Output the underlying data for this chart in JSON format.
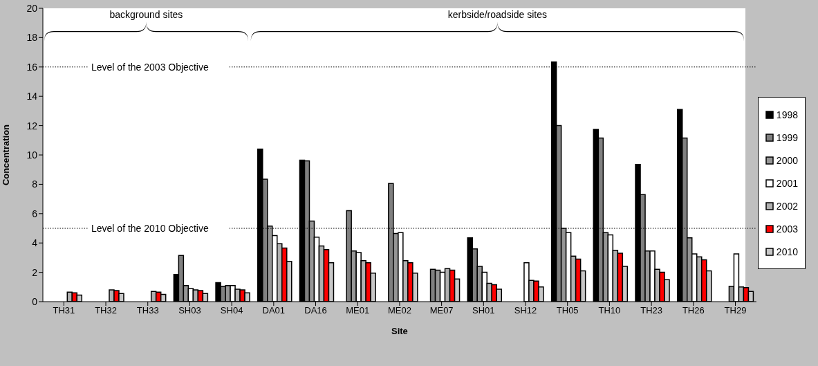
{
  "chart_data": {
    "type": "bar",
    "xlabel": "Site",
    "ylabel": "Concentration",
    "categories": [
      "TH31",
      "TH32",
      "TH33",
      "SH03",
      "SH04",
      "DA01",
      "DA16",
      "ME01",
      "ME02",
      "ME07",
      "SH01",
      "SH12",
      "TH05",
      "TH10",
      "TH23",
      "TH26",
      "TH29"
    ],
    "series": [
      {
        "name": "1998",
        "color": "#000000",
        "values": [
          null,
          null,
          null,
          1.85,
          1.3,
          10.4,
          9.65,
          null,
          null,
          null,
          4.35,
          null,
          16.35,
          11.75,
          9.35,
          13.1,
          null
        ]
      },
      {
        "name": "1999",
        "color": "#808080",
        "values": [
          null,
          null,
          null,
          3.15,
          1.05,
          8.35,
          9.6,
          6.2,
          8.05,
          2.2,
          3.6,
          null,
          12.0,
          11.15,
          7.3,
          11.15,
          null
        ]
      },
      {
        "name": "2000",
        "color": "#969696",
        "values": [
          null,
          null,
          null,
          1.1,
          1.1,
          5.15,
          5.5,
          3.45,
          4.65,
          2.15,
          2.4,
          null,
          5.0,
          4.7,
          3.45,
          4.35,
          1.05
        ]
      },
      {
        "name": "2001",
        "color": "#ffffff",
        "values": [
          null,
          null,
          null,
          0.9,
          1.1,
          4.5,
          4.4,
          3.35,
          4.7,
          2.0,
          2.0,
          2.65,
          4.7,
          4.55,
          3.45,
          3.25,
          3.25
        ]
      },
      {
        "name": "2002",
        "color": "#b0b0b0",
        "values": [
          0.65,
          0.8,
          0.7,
          0.8,
          0.85,
          3.95,
          3.8,
          2.8,
          2.8,
          2.25,
          1.25,
          1.45,
          3.1,
          3.5,
          2.2,
          3.05,
          1.0
        ]
      },
      {
        "name": "2003",
        "color": "#ff0000",
        "values": [
          0.6,
          0.75,
          0.65,
          0.75,
          0.8,
          3.65,
          3.55,
          2.65,
          2.65,
          2.15,
          1.15,
          1.4,
          2.9,
          3.3,
          2.0,
          2.85,
          0.95
        ]
      },
      {
        "name": "2010",
        "color": "#c8c8c8",
        "values": [
          0.45,
          0.55,
          0.5,
          0.55,
          0.6,
          2.75,
          2.65,
          1.95,
          1.95,
          1.55,
          0.85,
          1.0,
          2.1,
          2.4,
          1.5,
          2.1,
          0.7
        ]
      }
    ],
    "ylim": [
      0,
      20
    ],
    "yticks": [
      0,
      2,
      4,
      6,
      8,
      10,
      12,
      14,
      16,
      18,
      20
    ],
    "legend": "right",
    "ref_lines": [
      {
        "axis": "y",
        "value": 16,
        "label": "Level of the 2003 Objective",
        "line_style": "dotted"
      },
      {
        "axis": "y",
        "value": 5,
        "label": "Level of the 2010 Objective",
        "line_style": "dotted"
      }
    ],
    "annotations": [
      "background sites",
      "kerbside/roadside sites"
    ]
  }
}
